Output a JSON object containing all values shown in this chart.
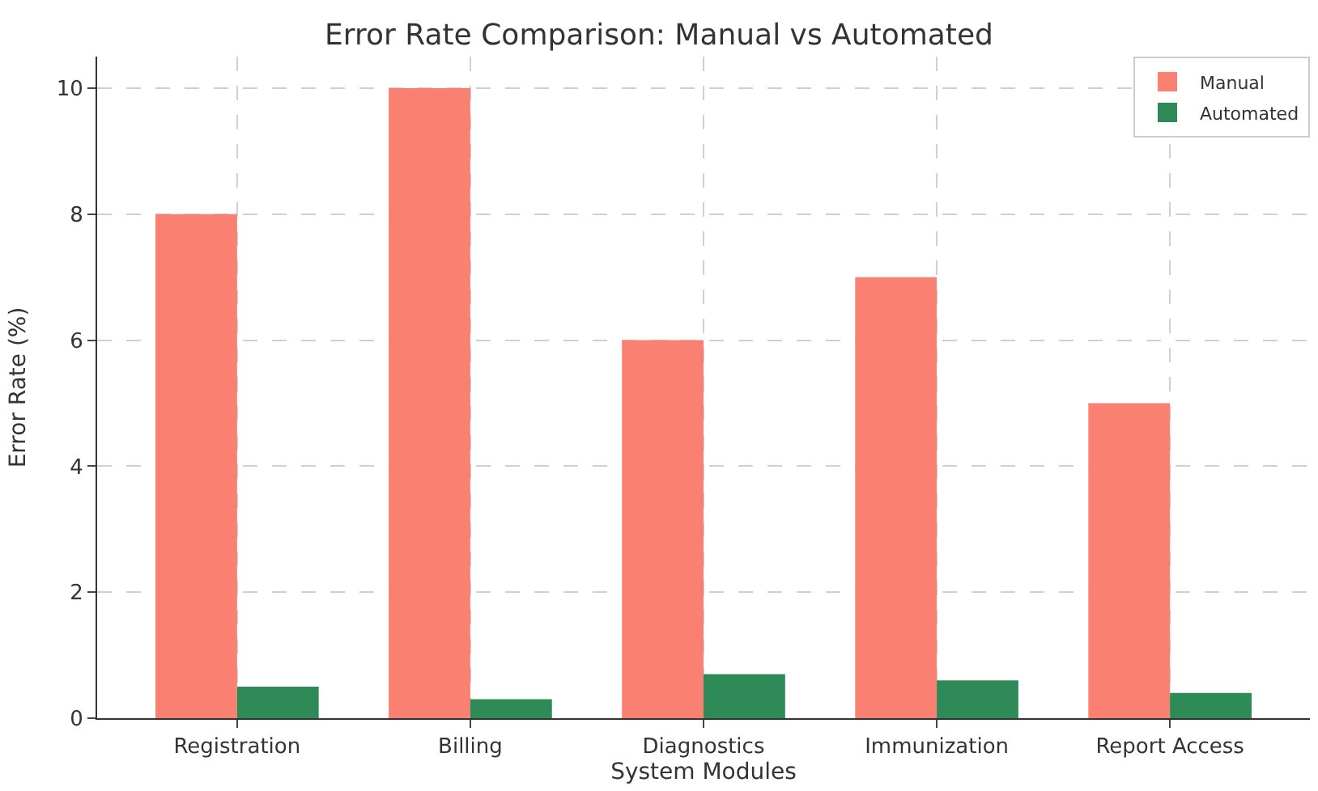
{
  "chart_data": {
    "type": "bar",
    "title": "Error Rate Comparison: Manual vs Automated",
    "xlabel": "System Modules",
    "ylabel": "Error Rate (%)",
    "categories": [
      "Registration",
      "Billing",
      "Diagnostics",
      "Immunization",
      "Report Access"
    ],
    "series": [
      {
        "name": "Manual",
        "color": "#fa8072",
        "values": [
          8,
          10,
          6,
          7,
          5
        ]
      },
      {
        "name": "Automated",
        "color": "#2e8b57",
        "values": [
          0.5,
          0.3,
          0.7,
          0.6,
          0.4
        ]
      }
    ],
    "ylim": [
      0,
      10.5
    ],
    "yticks": [
      0,
      2,
      4,
      6,
      8,
      10
    ],
    "grid": true,
    "legend": "top right"
  }
}
